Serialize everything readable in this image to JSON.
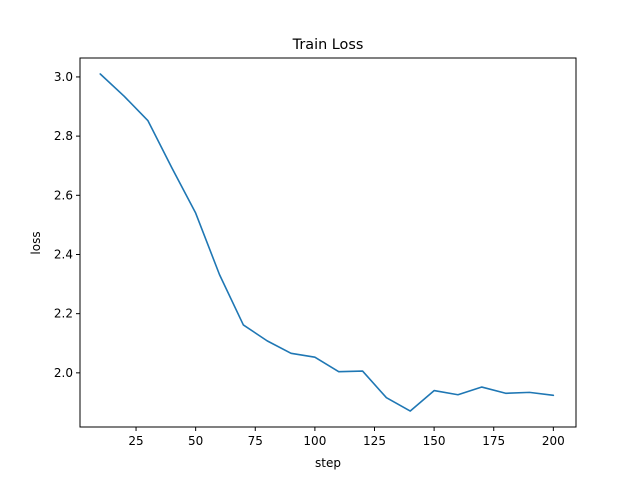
{
  "chart_data": {
    "type": "line",
    "title": "Train Loss",
    "xlabel": "step",
    "ylabel": "loss",
    "xlim": [
      1.5,
      209.5
    ],
    "ylim": [
      1.817,
      3.064
    ],
    "xticks": [
      25,
      50,
      75,
      100,
      125,
      150,
      175,
      200
    ],
    "xtick_labels": [
      "25",
      "50",
      "75",
      "100",
      "125",
      "150",
      "175",
      "200"
    ],
    "yticks": [
      2.0,
      2.2,
      2.4,
      2.6,
      2.8,
      3.0
    ],
    "ytick_labels": [
      "2.0",
      "2.2",
      "2.4",
      "2.6",
      "2.8",
      "3.0"
    ],
    "grid": false,
    "series": [
      {
        "color": "#1f77b4",
        "x": [
          10,
          20,
          30,
          40,
          50,
          60,
          70,
          80,
          90,
          100,
          110,
          120,
          130,
          140,
          150,
          160,
          170,
          180,
          190,
          200
        ],
        "y": [
          3.01,
          2.935,
          2.852,
          2.693,
          2.54,
          2.332,
          2.162,
          2.108,
          2.066,
          2.053,
          2.004,
          2.006,
          1.916,
          1.871,
          1.94,
          1.926,
          1.952,
          1.931,
          1.934,
          1.924
        ]
      }
    ]
  }
}
